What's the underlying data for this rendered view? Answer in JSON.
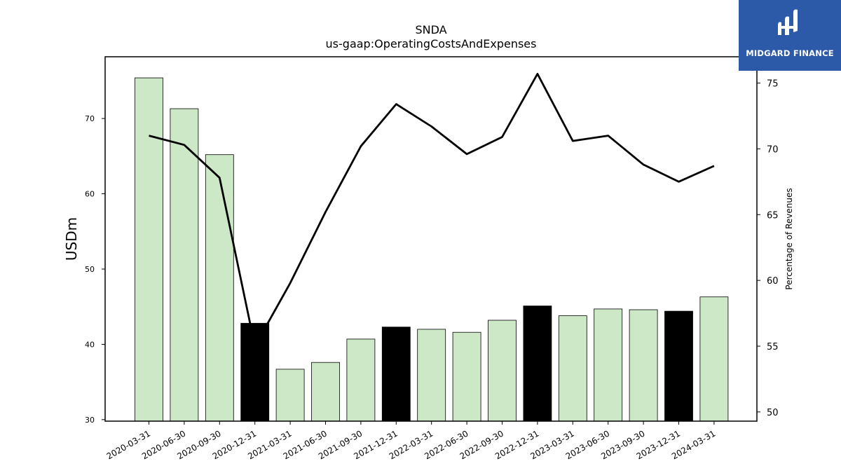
{
  "chart_data": {
    "type": "bar",
    "title": "SNDA",
    "subtitle": "us-gaap:OperatingCostsAndExpenses",
    "ylabel": "USDm",
    "ylabel_right": "Percentage of Revenues",
    "ylim": [
      29.8,
      78.2
    ],
    "ylim_right": [
      49.3,
      77.0
    ],
    "yticks": [
      30,
      40,
      50,
      60,
      70
    ],
    "yticks_right": [
      50,
      55,
      60,
      65,
      70,
      75
    ],
    "categories": [
      "2020-03-31",
      "2020-06-30",
      "2020-09-30",
      "2020-12-31",
      "2021-03-31",
      "2021-06-30",
      "2021-09-30",
      "2021-12-31",
      "2022-03-31",
      "2022-06-30",
      "2022-09-30",
      "2022-12-31",
      "2023-03-31",
      "2023-06-30",
      "2023-09-30",
      "2023-12-31",
      "2024-03-31"
    ],
    "series": [
      {
        "values": [
          75.4,
          71.3,
          65.2,
          42.8,
          36.7,
          37.6,
          40.7,
          42.3,
          42.0,
          41.6,
          43.2,
          45.1,
          43.8,
          44.7,
          44.6,
          44.4,
          46.3
        ],
        "highlight": [
          false,
          false,
          false,
          true,
          false,
          false,
          false,
          true,
          false,
          false,
          false,
          true,
          false,
          false,
          false,
          true,
          false
        ]
      },
      {
        "axis": "right",
        "type": "line",
        "values": [
          71.0,
          70.3,
          67.8,
          55.0,
          59.8,
          65.2,
          70.2,
          73.4,
          71.7,
          69.6,
          70.9,
          75.7,
          70.6,
          71.0,
          68.8,
          67.5,
          68.7
        ]
      }
    ],
    "colors": {
      "bar": "#cce8c6",
      "bar_highlight": "#000000",
      "line": "#000000"
    },
    "grid": false
  },
  "logo": {
    "text": "MIDGARD FINANCE"
  }
}
